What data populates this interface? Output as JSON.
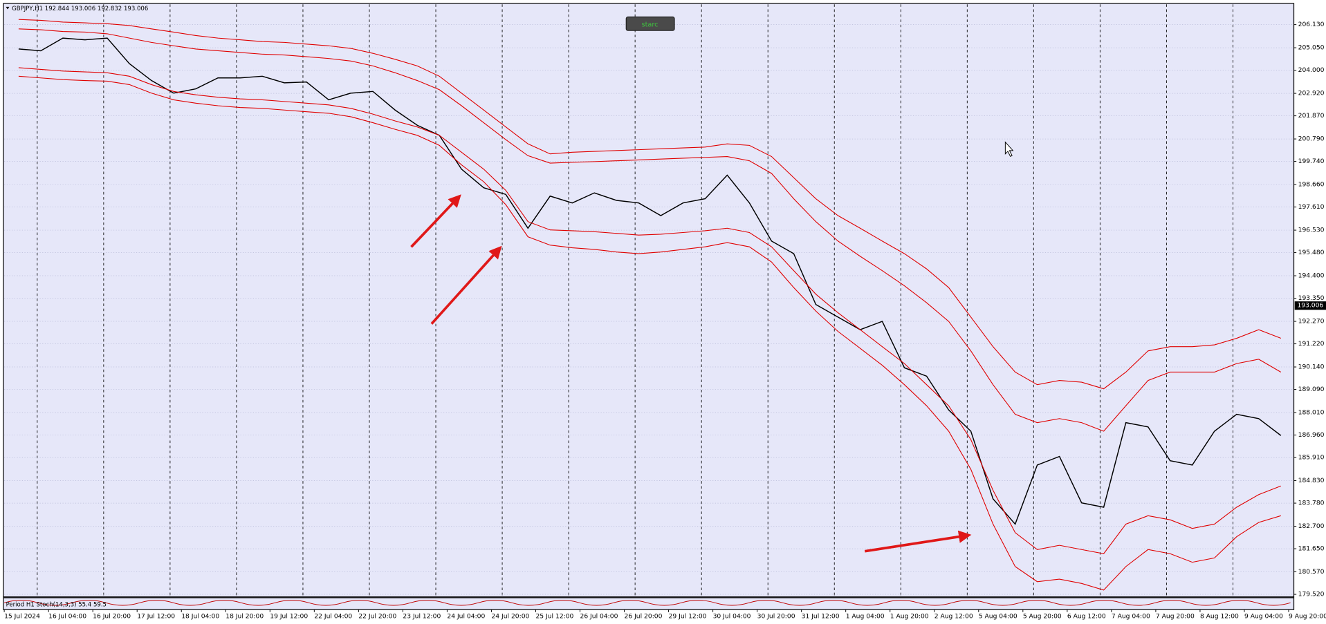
{
  "chart_data": {
    "type": "line",
    "title": "GBPJPY,H1  192.844 193.006 192.832 193.006",
    "button": "starc",
    "indicator": "Period H1 Stoch(14,3,3) 55.4 59.5",
    "current_price": {
      "value": 193.006,
      "label": "193.006"
    },
    "categories": [
      "15 Jul 2024",
      null,
      "16 Jul 04:00",
      null,
      "16 Jul 20:00",
      null,
      "17 Jul 12:00",
      null,
      "18 Jul 04:00",
      null,
      "18 Jul 20:00",
      null,
      "19 Jul 12:00",
      null,
      "22 Jul 04:00",
      null,
      "22 Jul 20:00",
      null,
      "23 Jul 12:00",
      null,
      "24 Jul 04:00",
      null,
      "24 Jul 20:00",
      null,
      "25 Jul 12:00",
      null,
      "26 Jul 04:00",
      null,
      "26 Jul 20:00",
      null,
      "29 Jul 12:00",
      null,
      "30 Jul 04:00",
      null,
      "30 Jul 20:00",
      null,
      "31 Jul 12:00",
      null,
      "1 Aug 04:00",
      null,
      "1 Aug 20:00",
      null,
      "2 Aug 12:00",
      null,
      "5 Aug 04:00",
      null,
      "5 Aug 20:00",
      null,
      "6 Aug 12:00",
      null,
      "7 Aug 04:00",
      null,
      "7 Aug 20:00",
      null,
      "8 Aug 12:00",
      null,
      "9 Aug 04:00",
      null,
      "9 Aug 20:00"
    ],
    "series": [
      {
        "color": "#000000",
        "values": [
          204.99,
          204.91,
          205.5,
          205.42,
          205.5,
          204.31,
          203.52,
          202.93,
          203.13,
          203.64,
          203.64,
          203.72,
          203.41,
          203.45,
          202.62,
          202.93,
          203.01,
          202.14,
          201.43,
          200.96,
          199.38,
          198.51,
          198.2,
          196.62,
          198.12,
          197.8,
          198.27,
          197.92,
          197.8,
          197.21,
          197.8,
          198.0,
          199.1,
          197.8,
          196.02,
          195.43,
          193.06,
          192.47,
          191.88,
          192.27,
          190.1,
          189.71,
          188.13,
          187.14,
          183.98,
          182.8,
          185.56,
          185.96,
          183.79,
          183.59,
          187.54,
          187.34,
          185.76,
          185.56,
          187.14,
          187.93,
          187.73,
          186.94,
          null
        ]
      },
      {
        "color": "#e00000",
        "values": [
          206.37,
          206.33,
          206.25,
          206.21,
          206.17,
          206.09,
          205.93,
          205.78,
          205.62,
          205.5,
          205.42,
          205.34,
          205.3,
          205.22,
          205.14,
          205.02,
          204.79,
          204.51,
          204.2,
          203.72,
          202.93,
          202.14,
          201.35,
          200.56,
          200.09,
          200.17,
          200.21,
          200.25,
          200.29,
          200.33,
          200.37,
          200.41,
          200.56,
          200.49,
          199.97,
          198.98,
          198.0,
          197.21,
          196.62,
          196.02,
          195.43,
          194.72,
          193.85,
          192.47,
          191.09,
          189.9,
          189.31,
          189.51,
          189.43,
          189.12,
          189.9,
          190.89,
          191.09,
          191.09,
          191.17,
          191.48,
          191.88,
          191.48,
          null
        ]
      },
      {
        "color": "#e00000",
        "values": [
          205.93,
          205.89,
          205.81,
          205.78,
          205.7,
          205.5,
          205.3,
          205.14,
          204.99,
          204.91,
          204.83,
          204.75,
          204.71,
          204.63,
          204.55,
          204.43,
          204.2,
          203.88,
          203.52,
          203.09,
          202.34,
          201.55,
          200.76,
          200.01,
          199.66,
          199.7,
          199.73,
          199.77,
          199.81,
          199.85,
          199.89,
          199.93,
          199.97,
          199.77,
          199.18,
          198.0,
          196.93,
          196.02,
          195.31,
          194.64,
          193.93,
          193.14,
          192.27,
          190.89,
          189.31,
          187.93,
          187.54,
          187.73,
          187.54,
          187.14,
          188.33,
          189.51,
          189.9,
          189.9,
          189.9,
          190.3,
          190.5,
          189.9,
          null
        ]
      },
      {
        "color": "#e00000",
        "values": [
          204.12,
          204.04,
          203.96,
          203.92,
          203.88,
          203.72,
          203.33,
          203.01,
          202.85,
          202.74,
          202.66,
          202.62,
          202.54,
          202.46,
          202.38,
          202.22,
          201.95,
          201.63,
          201.35,
          200.96,
          200.17,
          199.38,
          198.39,
          196.93,
          196.54,
          196.5,
          196.46,
          196.38,
          196.3,
          196.34,
          196.42,
          196.5,
          196.62,
          196.42,
          195.75,
          194.64,
          193.54,
          192.67,
          191.88,
          191.09,
          190.3,
          189.31,
          188.33,
          186.75,
          184.38,
          182.4,
          181.61,
          181.81,
          181.61,
          181.42,
          182.8,
          183.19,
          183.0,
          182.6,
          182.8,
          183.59,
          184.18,
          184.58,
          null
        ]
      },
      {
        "color": "#e00000",
        "values": [
          203.72,
          203.64,
          203.56,
          203.52,
          203.49,
          203.33,
          202.93,
          202.62,
          202.46,
          202.34,
          202.26,
          202.22,
          202.14,
          202.06,
          201.99,
          201.83,
          201.55,
          201.24,
          200.96,
          200.49,
          199.58,
          198.79,
          197.72,
          196.22,
          195.83,
          195.71,
          195.63,
          195.51,
          195.43,
          195.51,
          195.63,
          195.75,
          195.95,
          195.75,
          195.04,
          193.85,
          192.75,
          191.8,
          191.01,
          190.22,
          189.31,
          188.33,
          187.14,
          185.36,
          182.8,
          180.82,
          180.11,
          180.23,
          180.03,
          179.72,
          180.82,
          181.61,
          181.42,
          181.02,
          181.22,
          182.21,
          182.88,
          183.19,
          null
        ]
      }
    ],
    "ylim": [
      179.44,
      207.08
    ],
    "yticks": [
      {
        "value": 206.13,
        "label": "206.130"
      },
      {
        "value": 205.05,
        "label": "205.050"
      },
      {
        "value": 204.0,
        "label": "204.000"
      },
      {
        "value": 202.92,
        "label": "202.920"
      },
      {
        "value": 201.87,
        "label": "201.870"
      },
      {
        "value": 200.79,
        "label": "200.790"
      },
      {
        "value": 199.74,
        "label": "199.740"
      },
      {
        "value": 198.66,
        "label": "198.660"
      },
      {
        "value": 197.61,
        "label": "197.610"
      },
      {
        "value": 196.53,
        "label": "196.530"
      },
      {
        "value": 195.48,
        "label": "195.480"
      },
      {
        "value": 194.4,
        "label": "194.400"
      },
      {
        "value": 193.35,
        "label": "193.350"
      },
      {
        "value": 192.27,
        "label": "192.270"
      },
      {
        "value": 191.22,
        "label": "191.220"
      },
      {
        "value": 190.14,
        "label": "190.140"
      },
      {
        "value": 189.09,
        "label": "189.090"
      },
      {
        "value": 188.01,
        "label": "188.010"
      },
      {
        "value": 186.96,
        "label": "186.960"
      },
      {
        "value": 185.91,
        "label": "185.910"
      },
      {
        "value": 184.83,
        "label": "184.830"
      },
      {
        "value": 183.78,
        "label": "183.780"
      },
      {
        "value": 182.7,
        "label": "182.700"
      },
      {
        "value": 181.65,
        "label": "181.650"
      },
      {
        "value": 180.57,
        "label": "180.570"
      },
      {
        "value": 179.52,
        "label": "179.520"
      }
    ],
    "grid": true
  }
}
